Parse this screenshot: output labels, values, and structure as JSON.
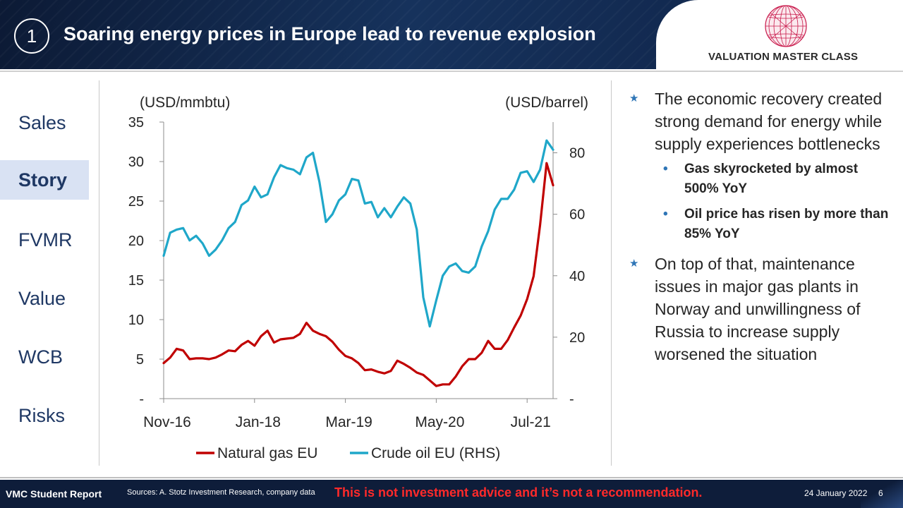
{
  "header": {
    "slide_number": "1",
    "title": "Soaring energy prices in Europe lead to revenue explosion",
    "logo_text": "VALUATION MASTER CLASS"
  },
  "sidebar": {
    "items": [
      {
        "label": "Sales",
        "active": false
      },
      {
        "label": "Story",
        "active": true
      },
      {
        "label": "FVMR",
        "active": false
      },
      {
        "label": "Value",
        "active": false
      },
      {
        "label": "WCB",
        "active": false
      },
      {
        "label": "Risks",
        "active": false
      }
    ]
  },
  "notes": {
    "bullets": [
      {
        "text": "The economic recovery created strong demand for energy while supply experiences bottlenecks",
        "subs": [
          "Gas skyrocketed by almost 500% YoY",
          "Oil price has risen by more than 85% YoY"
        ]
      },
      {
        "text": "On top of that, maintenance issues in major gas plants in Norway and unwillingness of Russia to increase supply worsened the situation",
        "subs": []
      }
    ]
  },
  "footer": {
    "report_label": "VMC Student Report",
    "sources": "Sources: A. Stotz Investment Research, company data",
    "warning": "This is not investment advice and it’s not a recommendation.",
    "date": "24 January 2022",
    "page": "6"
  },
  "colors": {
    "gas": "#c00000",
    "oil": "#1fa7c9",
    "accent": "#2e75b6",
    "navy": "#1f3864"
  },
  "chart_data": {
    "type": "line",
    "ylabel_left": "(USD/mmbtu)",
    "ylabel_right": "(USD/barrel)",
    "x_tick_labels": [
      "Nov-16",
      "Jan-18",
      "Mar-19",
      "May-20",
      "Jul-21"
    ],
    "x_tick_index": [
      0,
      14,
      28,
      42,
      56
    ],
    "yleft_ticks": [
      "-",
      "5",
      "10",
      "15",
      "20",
      "25",
      "30",
      "35"
    ],
    "yleft_range": [
      0,
      35
    ],
    "yright_ticks": [
      "-",
      "20",
      "40",
      "60",
      "80"
    ],
    "yright_range": [
      0,
      90
    ],
    "legend": [
      "Natural gas EU",
      "Crude oil EU (RHS)"
    ],
    "legend_position": "bottom",
    "series": [
      {
        "name": "Natural gas EU",
        "axis": "left",
        "values": [
          4.5,
          5.2,
          6.3,
          6.1,
          5.0,
          5.1,
          5.1,
          5.0,
          5.2,
          5.6,
          6.1,
          6.0,
          6.8,
          7.3,
          6.7,
          7.9,
          8.6,
          7.1,
          7.5,
          7.6,
          7.7,
          8.2,
          9.6,
          8.6,
          8.2,
          7.9,
          7.2,
          6.2,
          5.4,
          5.1,
          4.5,
          3.6,
          3.7,
          3.4,
          3.2,
          3.5,
          4.8,
          4.4,
          3.9,
          3.3,
          3.0,
          2.3,
          1.6,
          1.8,
          1.8,
          2.8,
          4.1,
          5.0,
          5.0,
          5.8,
          7.3,
          6.3,
          6.3,
          7.4,
          9.0,
          10.5,
          12.6,
          15.5,
          22.0,
          29.8,
          27.0
        ]
      },
      {
        "name": "Crude oil EU (RHS)",
        "axis": "right",
        "values": [
          46.5,
          54.0,
          55.0,
          55.5,
          51.5,
          53.0,
          50.5,
          46.5,
          48.5,
          51.5,
          55.5,
          57.5,
          63.0,
          64.5,
          69.0,
          65.5,
          66.5,
          72.0,
          76.0,
          75.0,
          74.5,
          73.0,
          78.5,
          80.0,
          70.5,
          57.5,
          60.0,
          64.5,
          66.5,
          71.5,
          71.0,
          63.5,
          64.0,
          59.0,
          62.0,
          59.0,
          62.5,
          65.5,
          63.5,
          55.0,
          33.0,
          23.5,
          32.0,
          40.0,
          43.0,
          44.0,
          41.5,
          41.0,
          43.0,
          49.5,
          54.5,
          61.5,
          65.0,
          65.0,
          68.0,
          73.5,
          74.0,
          70.5,
          74.5,
          84.0,
          81.0
        ]
      }
    ]
  }
}
